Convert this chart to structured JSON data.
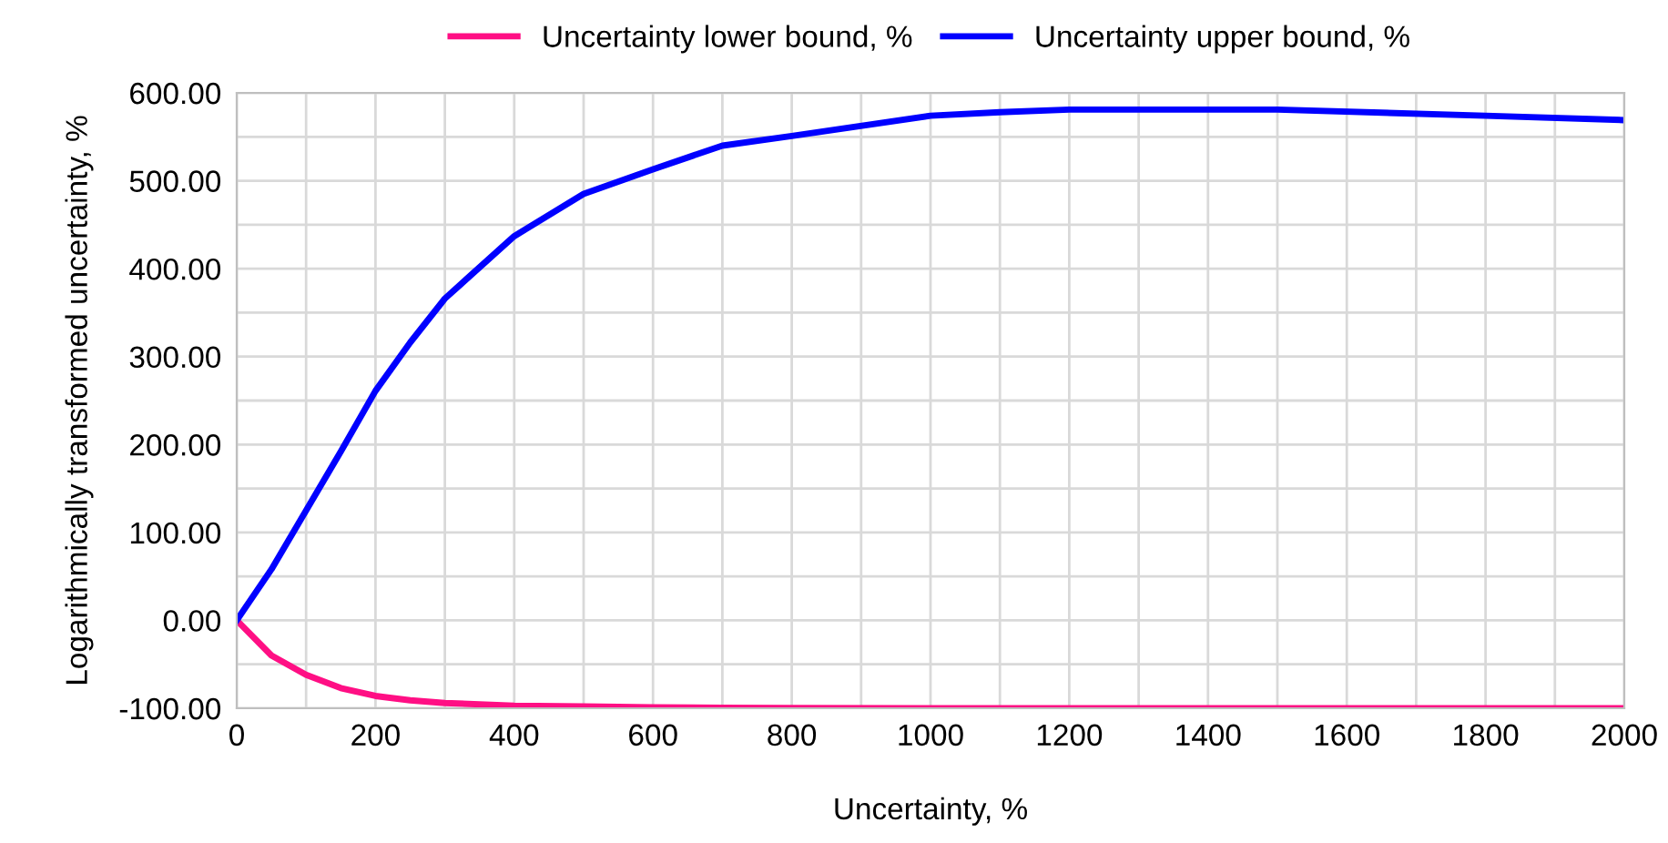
{
  "chart_data": {
    "type": "line",
    "xlabel": "Uncertainty, %",
    "ylabel": "Logarithmically transformed uncertainty, %",
    "x": [
      0,
      50,
      100,
      150,
      200,
      250,
      300,
      400,
      500,
      600,
      700,
      800,
      1000,
      1100,
      1200,
      1500,
      1800,
      2000
    ],
    "series": [
      {
        "name": "Uncertainty lower bound, %",
        "color": "#ff0f84",
        "values": [
          0,
          -40,
          -62,
          -77,
          -86,
          -91,
          -94,
          -97,
          -98,
          -99,
          -99.5,
          -99.7,
          -99.9,
          -99.9,
          -100,
          -100,
          -100,
          -100
        ]
      },
      {
        "name": "Uncertainty upper bound, %",
        "color": "#0000ff",
        "values": [
          0,
          58,
          125,
          192,
          261,
          316,
          366,
          437,
          485,
          513,
          540,
          551,
          574,
          578,
          581,
          581,
          574,
          569
        ]
      }
    ],
    "xlim": [
      0,
      2000
    ],
    "xticks": [
      0,
      200,
      400,
      600,
      800,
      1000,
      1200,
      1400,
      1600,
      1800,
      2000
    ],
    "ylim": [
      -100,
      600
    ],
    "yticks": [
      {
        "value": -100,
        "label": "-100.00"
      },
      {
        "value": 0,
        "label": "0.00"
      },
      {
        "value": 100,
        "label": "100.00"
      },
      {
        "value": 200,
        "label": "200.00"
      },
      {
        "value": 300,
        "label": "300.00"
      },
      {
        "value": 400,
        "label": "400.00"
      },
      {
        "value": 500,
        "label": "500.00"
      },
      {
        "value": 600,
        "label": "600.00"
      }
    ],
    "grid": true,
    "legend": "top",
    "marker": "none",
    "line_style": "solid"
  }
}
